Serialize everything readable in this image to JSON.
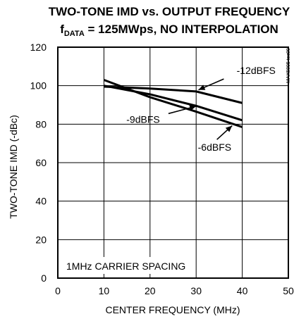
{
  "chart_data": {
    "type": "line",
    "title": "TWO-TONE IMD vs. OUTPUT FREQUENCY",
    "subtitle": {
      "prefix": "f",
      "subscript": "DATA",
      "rest": " = 125MWps, NO INTERPOLATION"
    },
    "xlabel": "CENTER FREQUENCY (MHz)",
    "ylabel": "TWO-TONE IMD (-dBc)",
    "xlim": [
      0,
      50
    ],
    "ylim": [
      0,
      120
    ],
    "xticks": [
      0,
      10,
      20,
      30,
      40,
      50
    ],
    "yticks": [
      0,
      20,
      40,
      60,
      80,
      100,
      120
    ],
    "grid": true,
    "annotation": "1MHz CARRIER SPACING",
    "watermark": "MAX5895 toc09",
    "series": [
      {
        "name": "-12dBFS",
        "x": [
          10,
          20,
          30,
          40
        ],
        "y": [
          99.5,
          98.5,
          97,
          91
        ]
      },
      {
        "name": "-9dBFS",
        "x": [
          10,
          20,
          30,
          40
        ],
        "y": [
          100,
          95.5,
          89.5,
          82
        ]
      },
      {
        "name": "-6dBFS",
        "x": [
          10,
          20,
          30,
          40
        ],
        "y": [
          103,
          94,
          86.5,
          78.5
        ]
      }
    ]
  }
}
